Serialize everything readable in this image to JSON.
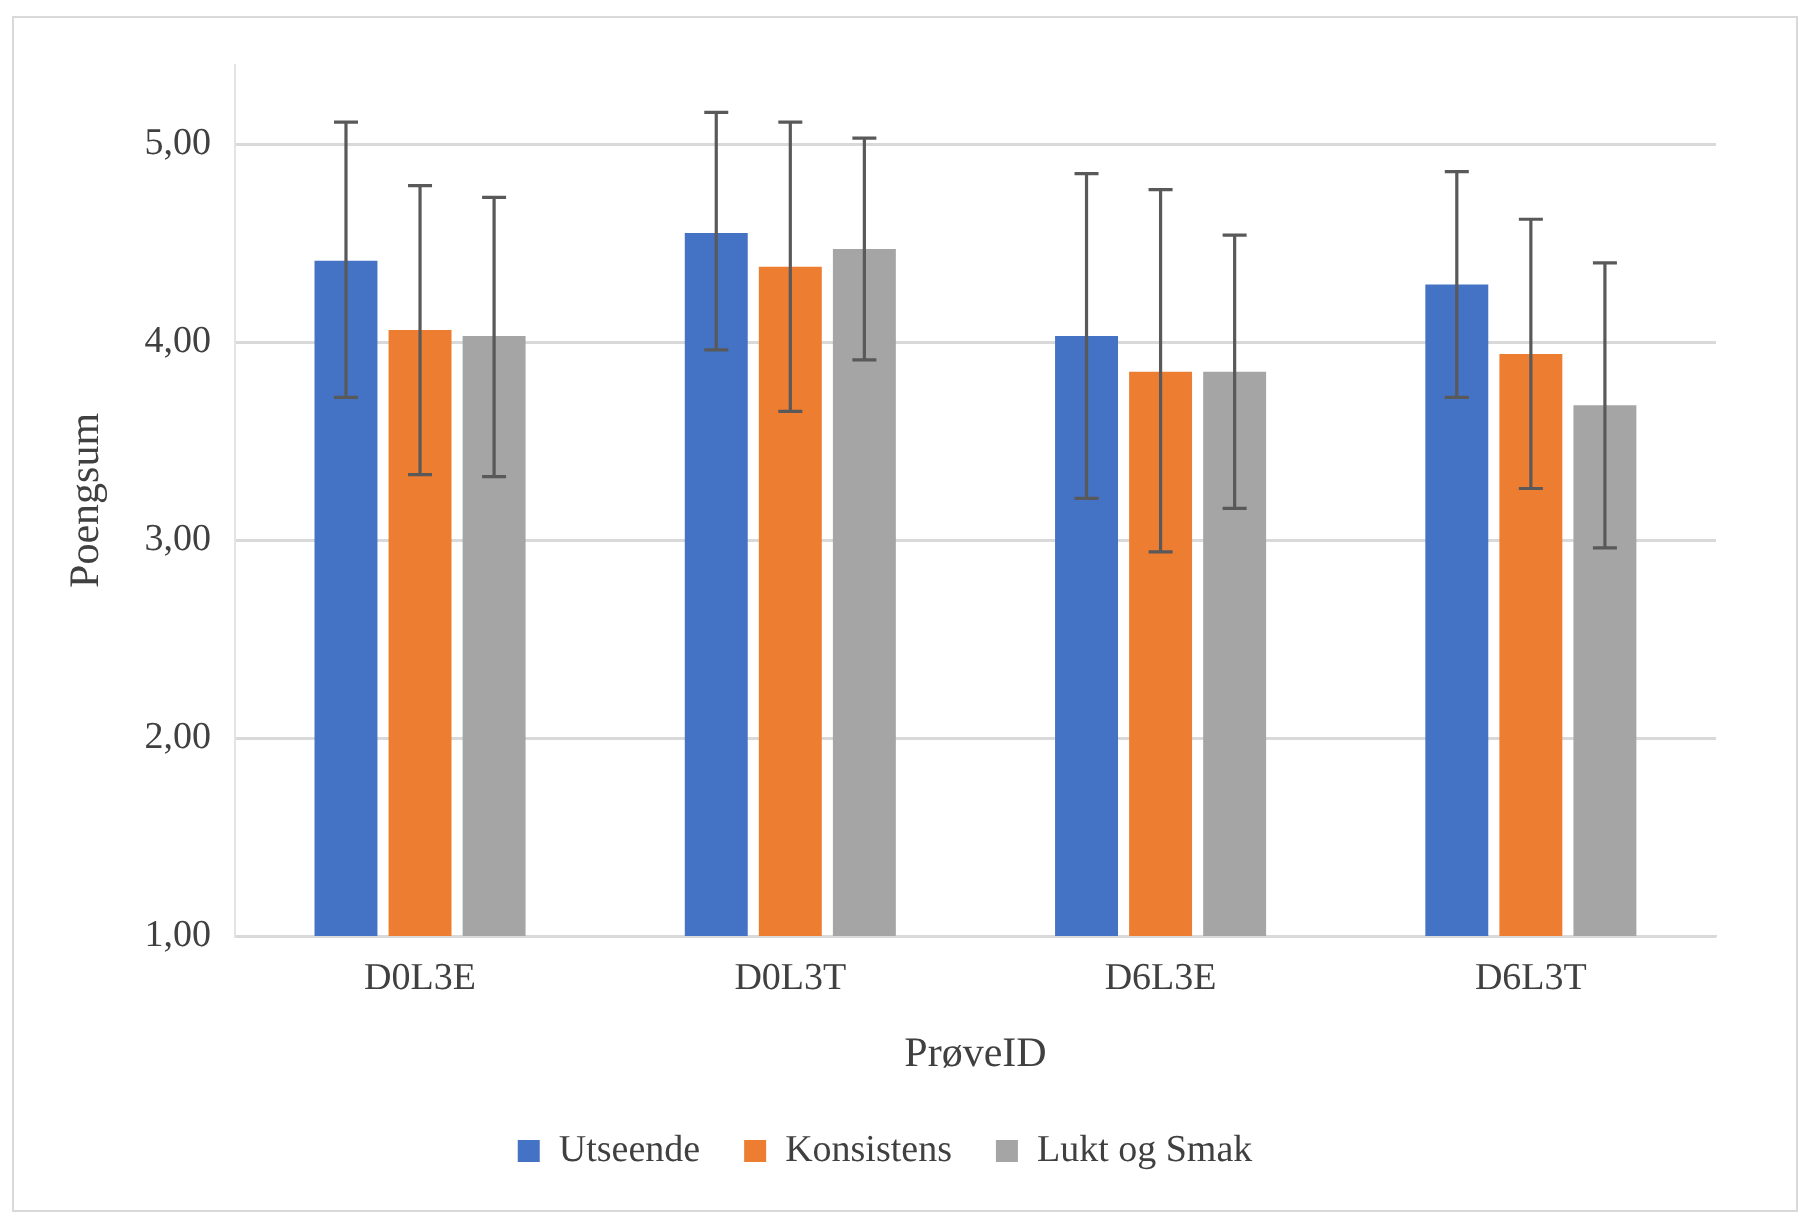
{
  "chart_data": {
    "type": "bar",
    "xlabel": "PrøveID",
    "ylabel": "Poengsum",
    "categories": [
      "D0L3E",
      "D0L3T",
      "D6L3E",
      "D6L3T"
    ],
    "series": [
      {
        "name": "Utseende",
        "color": "#4472c4",
        "values": [
          4.41,
          4.55,
          4.03,
          4.29
        ],
        "errors": [
          [
            3.72,
            5.11
          ],
          [
            3.96,
            5.16
          ],
          [
            3.21,
            4.85
          ],
          [
            3.72,
            4.86
          ]
        ]
      },
      {
        "name": "Konsistens",
        "color": "#ed7d31",
        "values": [
          4.06,
          4.38,
          3.85,
          3.94
        ],
        "errors": [
          [
            3.33,
            4.79
          ],
          [
            3.65,
            5.11
          ],
          [
            2.94,
            4.77
          ],
          [
            3.26,
            4.62
          ]
        ]
      },
      {
        "name": "Lukt og Smak",
        "color": "#a5a5a5",
        "values": [
          4.03,
          4.47,
          3.85,
          3.68
        ],
        "errors": [
          [
            3.32,
            4.73
          ],
          [
            3.91,
            5.03
          ],
          [
            3.16,
            4.54
          ],
          [
            2.96,
            4.4
          ]
        ]
      }
    ],
    "ylim": [
      1,
      5.4
    ],
    "yticks": [
      {
        "value": 1,
        "label": "1,00"
      },
      {
        "value": 2,
        "label": "2,00"
      },
      {
        "value": 3,
        "label": "3,00"
      },
      {
        "value": 4,
        "label": "4,00"
      },
      {
        "value": 5,
        "label": "5,00"
      }
    ],
    "grid": "y",
    "legend": "bottom"
  }
}
